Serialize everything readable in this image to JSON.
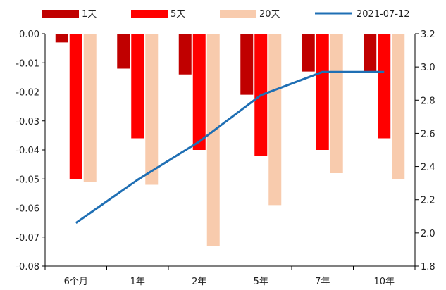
{
  "chart_data": {
    "type": "bar",
    "categories": [
      "6个月",
      "1年",
      "2年",
      "5年",
      "7年",
      "10年"
    ],
    "series": [
      {
        "name": "1天",
        "color": "#C00000",
        "values": [
          -0.003,
          -0.012,
          -0.014,
          -0.021,
          -0.013,
          -0.013
        ]
      },
      {
        "name": "5天",
        "color": "#FF0000",
        "values": [
          -0.05,
          -0.036,
          -0.04,
          -0.042,
          -0.04,
          -0.036
        ]
      },
      {
        "name": "20天",
        "color": "#F8CBAD",
        "values": [
          -0.051,
          -0.052,
          -0.073,
          -0.059,
          -0.048,
          -0.05
        ]
      }
    ],
    "line_series": {
      "name": "2021-07-12",
      "color": "#1F6FB4",
      "axis": "right",
      "values": [
        2.06,
        2.32,
        2.55,
        2.83,
        2.97,
        2.97
      ]
    },
    "ylim_left": [
      -0.08,
      0.0
    ],
    "left_ticks": [
      "0.00",
      "-0.01",
      "-0.02",
      "-0.03",
      "-0.04",
      "-0.05",
      "-0.06",
      "-0.07",
      "-0.08"
    ],
    "ylim_right": [
      1.8,
      3.2
    ],
    "right_ticks": [
      "3.2",
      "3.0",
      "2.8",
      "2.6",
      "2.4",
      "2.2",
      "2.0",
      "1.8"
    ],
    "grid": false,
    "legend_position": "top"
  }
}
